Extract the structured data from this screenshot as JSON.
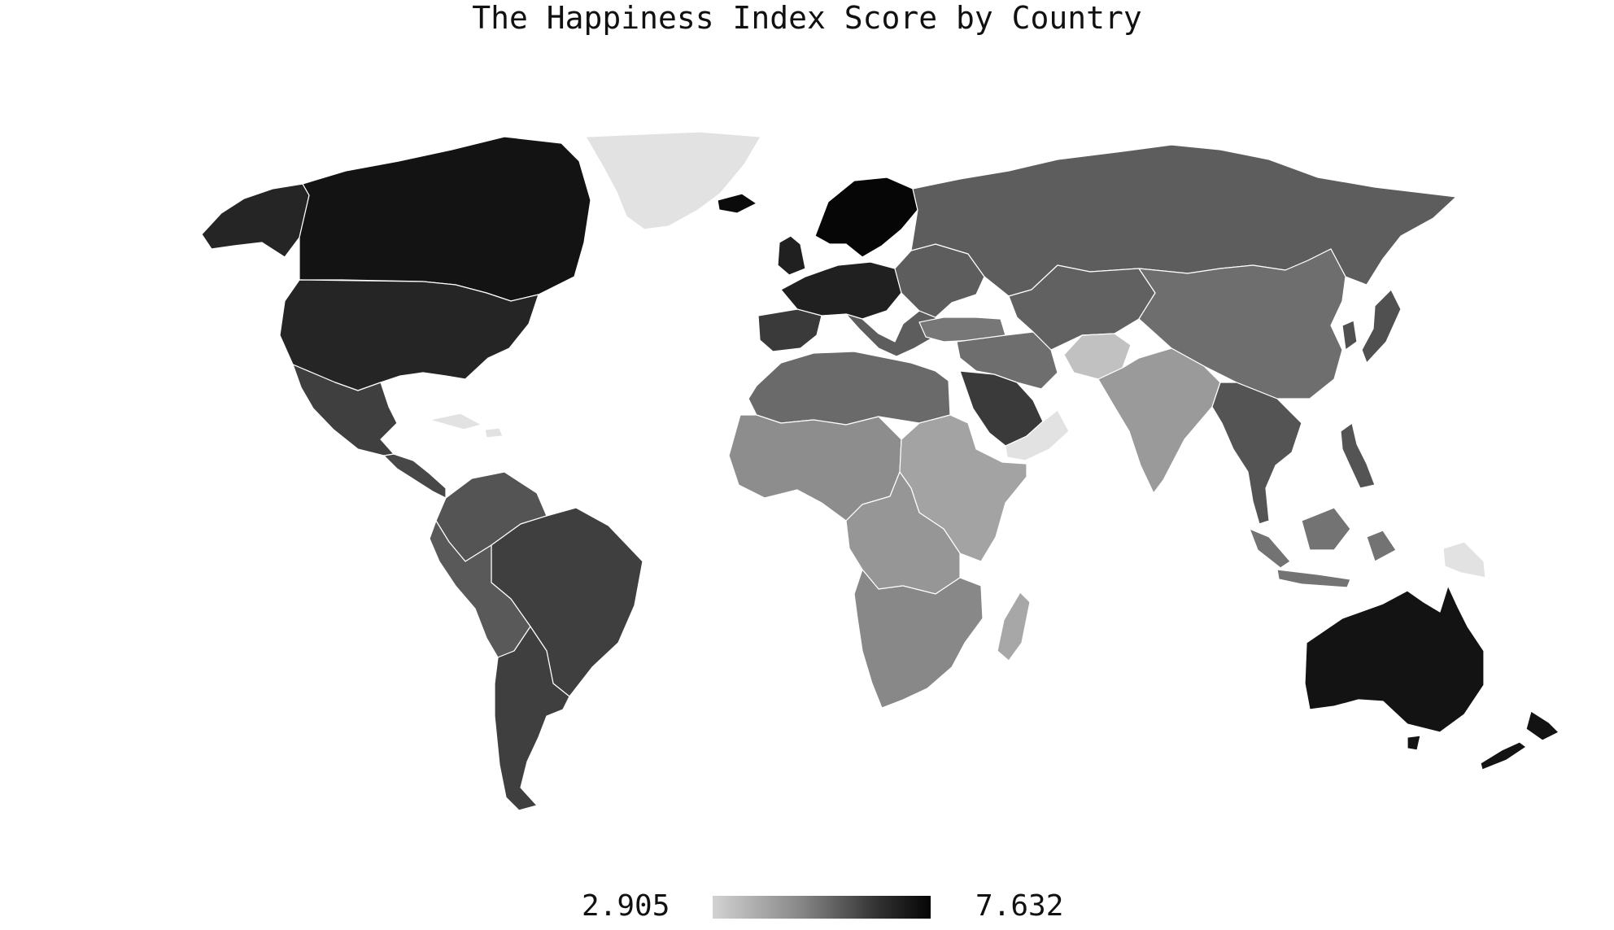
{
  "title": "The Happiness Index Score by Country",
  "legend": {
    "min_label": "2.905",
    "max_label": "7.632"
  },
  "colors": {
    "background": "#ffffff",
    "no_data": "#e2e2e2",
    "border": "#ffffff"
  },
  "regions": [
    {
      "id": "greenland",
      "value": null
    },
    {
      "id": "alaska",
      "value": 6.9
    },
    {
      "id": "canada",
      "value": 7.3
    },
    {
      "id": "usa",
      "value": 6.9
    },
    {
      "id": "mexico",
      "value": 6.3
    },
    {
      "id": "central-america",
      "value": 6.1
    },
    {
      "id": "caribbean",
      "value": null
    },
    {
      "id": "colombia-venezuela",
      "value": 5.8
    },
    {
      "id": "brazil",
      "value": 6.3
    },
    {
      "id": "andes",
      "value": 5.7
    },
    {
      "id": "southern-cone",
      "value": 6.3
    },
    {
      "id": "iceland",
      "value": 7.5
    },
    {
      "id": "nordics",
      "value": 7.6
    },
    {
      "id": "western-europe",
      "value": 7.0
    },
    {
      "id": "iberia",
      "value": 6.4
    },
    {
      "id": "eastern-europe",
      "value": 5.6
    },
    {
      "id": "russia",
      "value": 5.6
    },
    {
      "id": "turkey",
      "value": 5.0
    },
    {
      "id": "middle-east",
      "value": 5.2
    },
    {
      "id": "arabia",
      "value": 6.4
    },
    {
      "id": "yemen-oman",
      "value": null
    },
    {
      "id": "central-asia",
      "value": 5.5
    },
    {
      "id": "afghanistan",
      "value": 3.3
    },
    {
      "id": "china-mongolia",
      "value": 5.2
    },
    {
      "id": "korea-japan",
      "value": 5.9
    },
    {
      "id": "south-asia",
      "value": 4.2
    },
    {
      "id": "southeast-asia",
      "value": 5.8
    },
    {
      "id": "indonesia",
      "value": 5.1
    },
    {
      "id": "png",
      "value": null
    },
    {
      "id": "north-africa",
      "value": 5.3
    },
    {
      "id": "west-africa",
      "value": 4.5
    },
    {
      "id": "east-africa",
      "value": 4.0
    },
    {
      "id": "central-africa",
      "value": 4.3
    },
    {
      "id": "southern-africa",
      "value": 4.6
    },
    {
      "id": "madagascar",
      "value": 3.9
    },
    {
      "id": "australia",
      "value": 7.3
    },
    {
      "id": "new-zealand",
      "value": 7.3
    }
  ]
}
